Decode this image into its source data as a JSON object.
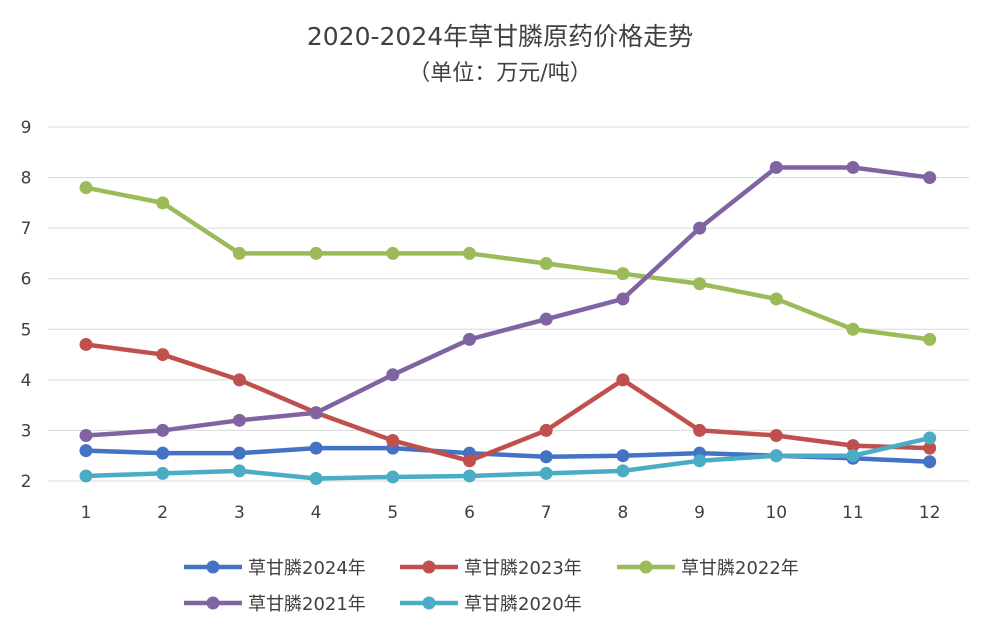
{
  "chart_data": {
    "type": "line",
    "title": "2020-2024年草甘膦原药价格走势",
    "subtitle": "（单位：万元/吨）",
    "xlabel": "",
    "ylabel": "",
    "x": [
      "1",
      "2",
      "3",
      "4",
      "5",
      "6",
      "7",
      "8",
      "9",
      "10",
      "11",
      "12"
    ],
    "yticks": [
      "2",
      "3",
      "4",
      "5",
      "6",
      "7",
      "8",
      "9"
    ],
    "ylim": [
      2,
      9
    ],
    "grid": true,
    "legend": "bottom",
    "series": [
      {
        "name": "草甘膦2024年",
        "color": "#4472C4",
        "values": [
          2.6,
          2.55,
          2.55,
          2.65,
          2.65,
          2.55,
          2.48,
          2.5,
          2.55,
          2.5,
          2.45,
          2.38
        ]
      },
      {
        "name": "草甘膦2023年",
        "color": "#C0504D",
        "values": [
          4.7,
          4.5,
          4.0,
          3.35,
          2.8,
          2.4,
          3.0,
          4.0,
          3.0,
          2.9,
          2.7,
          2.65
        ]
      },
      {
        "name": "草甘膦2022年",
        "color": "#9BBB59",
        "values": [
          7.8,
          7.5,
          6.5,
          6.5,
          6.5,
          6.5,
          6.3,
          6.1,
          5.9,
          5.6,
          5.0,
          4.8
        ]
      },
      {
        "name": "草甘膦2021年",
        "color": "#8064A2",
        "values": [
          2.9,
          3.0,
          3.2,
          3.35,
          4.1,
          4.8,
          5.2,
          5.6,
          7.0,
          8.2,
          8.2,
          8.0
        ]
      },
      {
        "name": "草甘膦2020年",
        "color": "#4BACC6",
        "values": [
          2.1,
          2.15,
          2.2,
          2.05,
          2.08,
          2.1,
          2.15,
          2.2,
          2.4,
          2.5,
          2.5,
          2.85
        ]
      }
    ]
  }
}
